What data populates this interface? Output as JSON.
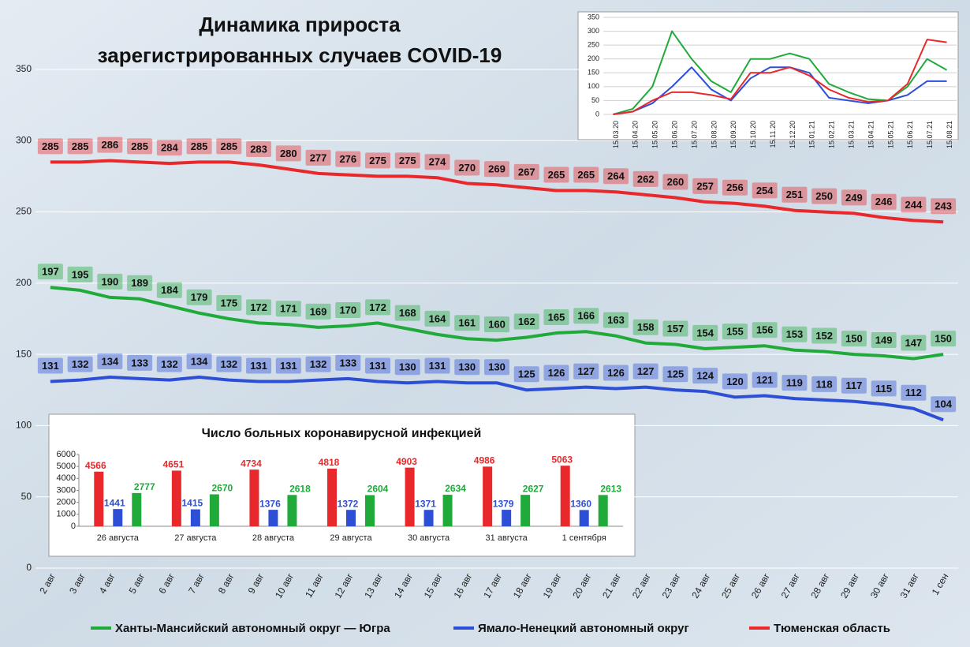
{
  "chart_data": [
    {
      "type": "line",
      "title": [
        "Динамика прироста",
        "зарегистрированных случаев COVID-19"
      ],
      "categories": [
        "2 авг",
        "3 авг",
        "4 авг",
        "5 авг",
        "6 авг",
        "7 авг",
        "8 авг",
        "9 авг",
        "10 авг",
        "11 авг",
        "12 авг",
        "13 авг",
        "14 авг",
        "15 авг",
        "16 авг",
        "17 авг",
        "18 авг",
        "19 авг",
        "20 авг",
        "21 авг",
        "22 авг",
        "23 авг",
        "24 авг",
        "25 авг",
        "26 авг",
        "27 авг",
        "28 авг",
        "29 авг",
        "30 авг",
        "31 авг",
        "1 сен"
      ],
      "series": [
        {
          "name": "Ханты-Мансийский автономный округ — Югра",
          "color": "#1faa3a",
          "values": [
            197,
            195,
            190,
            189,
            184,
            179,
            175,
            172,
            171,
            169,
            170,
            172,
            168,
            164,
            161,
            160,
            162,
            165,
            166,
            163,
            158,
            157,
            154,
            155,
            156,
            153,
            152,
            150,
            149,
            147,
            150
          ]
        },
        {
          "name": "Ямало-Ненецкий автономный округ",
          "color": "#2d4fd6",
          "values": [
            131,
            132,
            134,
            133,
            132,
            134,
            132,
            131,
            131,
            132,
            133,
            131,
            130,
            131,
            130,
            130,
            125,
            126,
            127,
            126,
            127,
            125,
            124,
            120,
            121,
            119,
            118,
            117,
            115,
            112,
            104
          ]
        },
        {
          "name": "Тюменская область",
          "color": "#e8282a",
          "values": [
            285,
            285,
            286,
            285,
            284,
            285,
            285,
            283,
            280,
            277,
            276,
            275,
            275,
            274,
            270,
            269,
            267,
            265,
            265,
            264,
            262,
            260,
            257,
            256,
            254,
            251,
            250,
            249,
            246,
            244,
            243
          ]
        }
      ],
      "ylim": [
        0,
        350
      ],
      "yticks": [
        0,
        50,
        100,
        150,
        200,
        250,
        300,
        350
      ],
      "grid": true,
      "data_labels": true,
      "legend": "bottom"
    },
    {
      "type": "line",
      "categories": [
        "15.03.20",
        "15.04.20",
        "15.05.20",
        "15.06.20",
        "15.07.20",
        "15.08.20",
        "15.09.20",
        "15.10.20",
        "15.11.20",
        "15.12.20",
        "15.01.21",
        "15.02.21",
        "15.03.21",
        "15.04.21",
        "15.05.21",
        "15.06.21",
        "15.07.21",
        "15.08.21"
      ],
      "series": [
        {
          "color": "#1faa3a",
          "values": [
            0,
            20,
            100,
            300,
            200,
            120,
            80,
            200,
            200,
            220,
            200,
            110,
            80,
            55,
            50,
            100,
            200,
            160
          ]
        },
        {
          "color": "#2d4fd6",
          "values": [
            0,
            10,
            40,
            100,
            170,
            90,
            50,
            130,
            170,
            170,
            150,
            60,
            50,
            40,
            50,
            70,
            120,
            120
          ]
        },
        {
          "color": "#e8282a",
          "values": [
            0,
            10,
            50,
            80,
            80,
            70,
            55,
            150,
            150,
            170,
            140,
            90,
            60,
            45,
            50,
            110,
            270,
            260
          ]
        }
      ],
      "ylim": [
        0,
        350
      ],
      "yticks": [
        0,
        50,
        100,
        150,
        200,
        250,
        300,
        350
      ],
      "grid": true
    },
    {
      "type": "bar",
      "title": "Число больных коронавирусной инфекцией",
      "categories": [
        "26 августа",
        "27 августа",
        "28 августа",
        "29 августа",
        "30 августа",
        "31 августа",
        "1 сентября"
      ],
      "series": [
        {
          "color": "#e8282a",
          "values": [
            4566,
            4651,
            4734,
            4818,
            4903,
            4986,
            5063
          ]
        },
        {
          "color": "#2d4fd6",
          "values": [
            1441,
            1415,
            1376,
            1372,
            1371,
            1379,
            1360
          ]
        },
        {
          "color": "#1faa3a",
          "values": [
            2777,
            2670,
            2618,
            2604,
            2634,
            2627,
            2613
          ]
        }
      ],
      "ylim": [
        0,
        6000
      ],
      "yticks": [
        0,
        1000,
        2000,
        3000,
        4000,
        5000,
        6000
      ]
    }
  ]
}
